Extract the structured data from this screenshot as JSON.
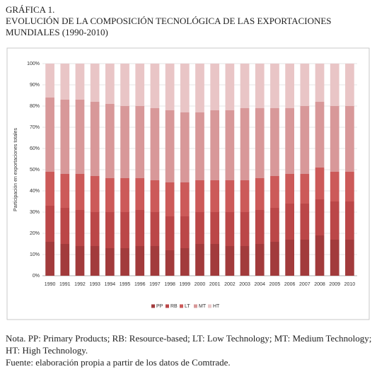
{
  "chart_data": {
    "type": "stacked_bar",
    "header": "GRÁFICA 1.",
    "title": "EVOLUCIÓN DE LA COMPOSICIÓN TECNOLÓGICA DE LAS EXPORTACIONES MUNDIALES (1990-2010)",
    "y_label": "Participación en exportaciones totales",
    "categories": [
      "1990",
      "1991",
      "1992",
      "1993",
      "1994",
      "1995",
      "1996",
      "1997",
      "1998",
      "1999",
      "2000",
      "2001",
      "2002",
      "2003",
      "2004",
      "2005",
      "2006",
      "2007",
      "2008",
      "2009",
      "2010"
    ],
    "series": [
      {
        "name": "PP",
        "color": "#a23b3c",
        "values": [
          16,
          15,
          14,
          14,
          13,
          13,
          14,
          14,
          12,
          13,
          15,
          15,
          14,
          14,
          15,
          16,
          17,
          17,
          19,
          17,
          17
        ]
      },
      {
        "name": "RB",
        "color": "#bb4748",
        "values": [
          17,
          17,
          17,
          16,
          17,
          17,
          17,
          16,
          16,
          15,
          15,
          15,
          16,
          16,
          16,
          16,
          17,
          17,
          17,
          18,
          18
        ]
      },
      {
        "name": "LT",
        "color": "#cc5a59",
        "values": [
          16,
          16,
          17,
          17,
          16,
          16,
          15,
          15,
          16,
          16,
          15,
          15,
          15,
          15,
          15,
          15,
          14,
          14,
          15,
          14,
          14
        ]
      },
      {
        "name": "MT",
        "color": "#d89899",
        "values": [
          35,
          35,
          35,
          35,
          35,
          34,
          34,
          34,
          34,
          33,
          32,
          33,
          33,
          34,
          33,
          32,
          31,
          32,
          31,
          31,
          31
        ]
      },
      {
        "name": "HT",
        "color": "#e9c5c6",
        "values": [
          16,
          17,
          17,
          18,
          19,
          20,
          20,
          21,
          22,
          23,
          23,
          22,
          22,
          21,
          21,
          21,
          21,
          20,
          18,
          20,
          20
        ]
      }
    ],
    "ylim": [
      0,
      100
    ],
    "yticks": [
      {
        "value": 0,
        "label": "0%"
      },
      {
        "value": 10,
        "label": "10%"
      },
      {
        "value": 20,
        "label": "20%"
      },
      {
        "value": 30,
        "label": "30%"
      },
      {
        "value": 40,
        "label": "40%"
      },
      {
        "value": 50,
        "label": "50%"
      },
      {
        "value": 60,
        "label": "60%"
      },
      {
        "value": 70,
        "label": "70%"
      },
      {
        "value": 80,
        "label": "80%"
      },
      {
        "value": 90,
        "label": "90%"
      },
      {
        "value": 100,
        "label": "100%"
      }
    ],
    "grid": true,
    "legend": "bottom",
    "note": "Nota.  PP: Primary Products; RB: Resource-based; LT: Low Technology; MT: Medium Technology; HT: High Technology.",
    "source": "Fuente: elaboración propia a partir de los datos de Comtrade."
  }
}
